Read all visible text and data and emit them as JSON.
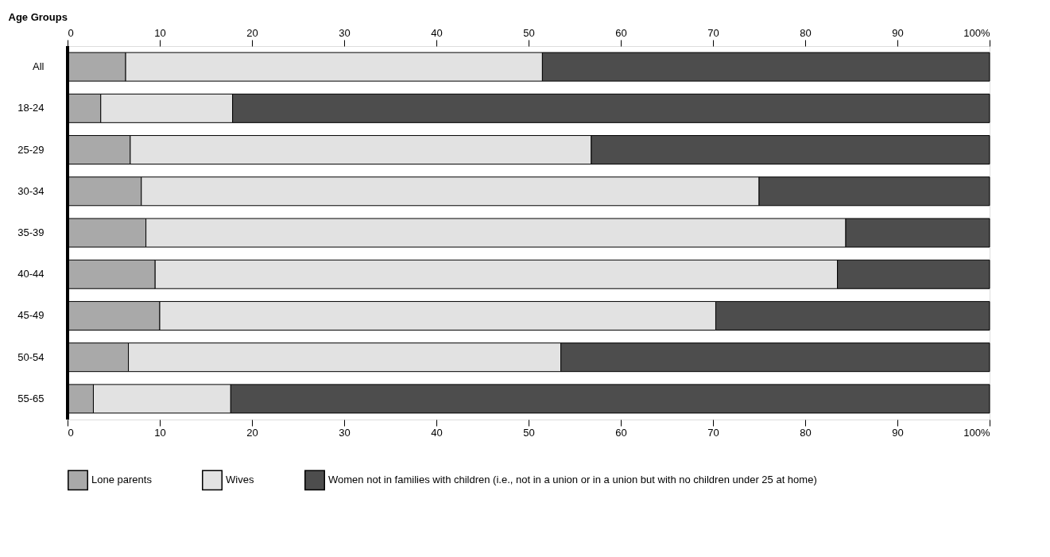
{
  "chart_data": {
    "type": "bar",
    "orientation": "horizontal",
    "stacked": true,
    "ylabel": "Age Groups",
    "categories": [
      "All",
      "18-24",
      "25-29",
      "30-34",
      "35-39",
      "40-44",
      "45-49",
      "50-54",
      "55-65"
    ],
    "series": [
      {
        "name": "Lone parents",
        "color": "#a9a9a9",
        "values": [
          6.3,
          3.6,
          6.8,
          8.0,
          8.5,
          9.5,
          10.0,
          6.6,
          2.8
        ]
      },
      {
        "name": "Wives",
        "color": "#e2e2e2",
        "values": [
          45.2,
          14.3,
          50.0,
          67.0,
          75.9,
          74.0,
          60.3,
          46.9,
          14.9
        ]
      },
      {
        "name": "Women not in families with children (i.e., not in a union or in a union but with no children under 25 at home)",
        "color": "#4d4d4d",
        "values": [
          48.5,
          82.1,
          43.2,
          25.0,
          15.6,
          16.5,
          29.7,
          46.5,
          82.3
        ]
      }
    ],
    "xlim": [
      0,
      100
    ],
    "xticks": [
      0,
      10,
      20,
      30,
      40,
      50,
      60,
      70,
      80,
      90,
      {
        "value": 100,
        "label": "100%"
      }
    ],
    "x2lim": [
      0,
      100
    ],
    "x2ticks": [
      0,
      10,
      20,
      30,
      40,
      50,
      60,
      70,
      80,
      90,
      {
        "value": 100,
        "label": "100%"
      }
    ],
    "grid": false,
    "legend": "bottom"
  }
}
